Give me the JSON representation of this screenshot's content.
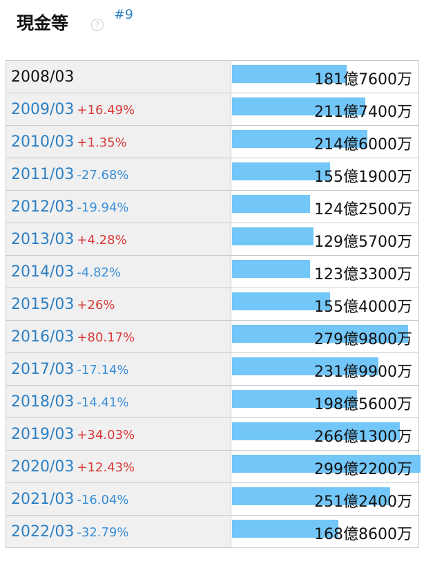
{
  "header": {
    "title": "現金等",
    "link": "#9"
  },
  "table": {
    "rows": [
      {
        "period": "2008/03",
        "value": 1817600,
        "value_label": "181億7600万"
      },
      {
        "period": "2009/03",
        "change": "+16.49%",
        "value": 2117400,
        "value_label": "211億7400万"
      },
      {
        "period": "2010/03",
        "change": "+1.35%",
        "value": 2146000,
        "value_label": "214億6000万"
      },
      {
        "period": "2011/03",
        "change": "-27.68%",
        "value": 1551900,
        "value_label": "155億1900万"
      },
      {
        "period": "2012/03",
        "change": "-19.94%",
        "value": 1242500,
        "value_label": "124億2500万"
      },
      {
        "period": "2013/03",
        "change": "+4.28%",
        "value": 1295700,
        "value_label": "129億5700万"
      },
      {
        "period": "2014/03",
        "change": "-4.82%",
        "value": 1233300,
        "value_label": "123億3300万"
      },
      {
        "period": "2015/03",
        "change": "+26%",
        "value": 1554000,
        "value_label": "155億4000万"
      },
      {
        "period": "2016/03",
        "change": "+80.17%",
        "value": 2799800,
        "value_label": "279億9800万"
      },
      {
        "period": "2017/03",
        "change": "-17.14%",
        "value": 2319900,
        "value_label": "231億9900万"
      },
      {
        "period": "2018/03",
        "change": "-14.41%",
        "value": 1985600,
        "value_label": "198億5600万"
      },
      {
        "period": "2019/03",
        "change": "+34.03%",
        "value": 2661300,
        "value_label": "266億1300万"
      },
      {
        "period": "2020/03",
        "change": "+12.43%",
        "value": 2992200,
        "value_label": "299億2200万"
      },
      {
        "period": "2021/03",
        "change": "-16.04%",
        "value": 2512400,
        "value_label": "251億2400万"
      },
      {
        "period": "2022/03",
        "change": "-32.79%",
        "value": 1688600,
        "value_label": "168億8600万"
      }
    ],
    "bar_color": "#73c6f8"
  }
}
